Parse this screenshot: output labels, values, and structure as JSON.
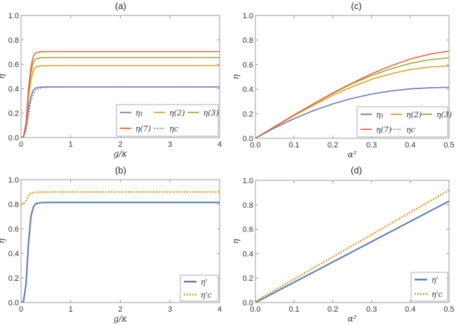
{
  "colors": {
    "blue": "#5e81b5",
    "gold": "#e19c24",
    "green": "#8fb032",
    "red": "#eb6235",
    "purple": "#8778b3"
  },
  "chart_data": [
    {
      "id": "a",
      "panel_label": "(a)",
      "type": "line",
      "xlabel": "g/κ",
      "ylabel": "η",
      "xlim": [
        0,
        4
      ],
      "ylim": [
        0,
        1
      ],
      "xticks": [
        "0",
        "1",
        "2",
        "3",
        "4"
      ],
      "yticks": [
        "0.0",
        "0.2",
        "0.4",
        "0.6",
        "0.8",
        "1.0"
      ],
      "legend_position": "bottom-right",
      "legend_columns": 3,
      "series": [
        {
          "name": "η1",
          "legend": "η₁",
          "color": "blue",
          "dash": "solid",
          "x": [
            0,
            0.05,
            0.1,
            0.15,
            0.2,
            0.25,
            0.3,
            0.4,
            0.6,
            1,
            4
          ],
          "y": [
            0,
            0.01,
            0.08,
            0.24,
            0.34,
            0.39,
            0.408,
            0.414,
            0.415,
            0.415,
            0.415
          ]
        },
        {
          "name": "η(2)",
          "legend": "η(2)",
          "color": "gold",
          "dash": "solid",
          "x": [
            0,
            0.05,
            0.1,
            0.15,
            0.2,
            0.25,
            0.3,
            0.4,
            0.6,
            1,
            4
          ],
          "y": [
            0,
            0.01,
            0.1,
            0.33,
            0.47,
            0.55,
            0.58,
            0.588,
            0.589,
            0.589,
            0.589
          ]
        },
        {
          "name": "η(3)",
          "legend": "η(3)",
          "color": "green",
          "dash": "solid",
          "x": [
            0,
            0.05,
            0.1,
            0.15,
            0.2,
            0.25,
            0.3,
            0.4,
            0.6,
            1,
            4
          ],
          "y": [
            0,
            0.01,
            0.11,
            0.37,
            0.53,
            0.62,
            0.645,
            0.654,
            0.655,
            0.655,
            0.655
          ]
        },
        {
          "name": "η(7)",
          "legend": "η(7)",
          "color": "red",
          "dash": "solid",
          "x": [
            0,
            0.05,
            0.1,
            0.15,
            0.2,
            0.25,
            0.3,
            0.4,
            0.6,
            1,
            4
          ],
          "y": [
            0,
            0.01,
            0.12,
            0.4,
            0.58,
            0.67,
            0.695,
            0.703,
            0.704,
            0.704,
            0.704
          ]
        },
        {
          "name": "ηc",
          "legend": "ηc",
          "color": "purple",
          "dash": "dotted",
          "x": [
            0,
            0.05,
            0.1,
            0.15,
            0.2,
            0.25,
            0.3,
            0.35,
            0.45,
            0.6,
            1,
            4
          ],
          "y": [
            0,
            0.005,
            0.05,
            0.18,
            0.3,
            0.36,
            0.39,
            0.403,
            0.41,
            0.413,
            0.415,
            0.415
          ]
        }
      ]
    },
    {
      "id": "c",
      "panel_label": "(c)",
      "type": "line",
      "xlabel": "α²",
      "ylabel": "η",
      "xlim": [
        0,
        0.5
      ],
      "ylim": [
        0,
        1
      ],
      "xticks": [
        "0.0",
        "0.1",
        "0.2",
        "0.3",
        "0.4",
        "0.5"
      ],
      "yticks": [
        "0.0",
        "0.2",
        "0.4",
        "0.6",
        "0.8",
        "1.0"
      ],
      "legend_position": "bottom-right",
      "legend_columns": 3,
      "series": [
        {
          "name": "η1",
          "legend": "η₁",
          "color": "blue",
          "dash": "solid",
          "x": [
            0,
            0.05,
            0.1,
            0.15,
            0.2,
            0.25,
            0.3,
            0.35,
            0.4,
            0.45,
            0.5
          ],
          "y": [
            0,
            0.085,
            0.16,
            0.225,
            0.28,
            0.325,
            0.36,
            0.385,
            0.402,
            0.411,
            0.415
          ]
        },
        {
          "name": "η(2)",
          "legend": "η(2)",
          "color": "gold",
          "dash": "solid",
          "x": [
            0,
            0.05,
            0.1,
            0.15,
            0.2,
            0.25,
            0.3,
            0.35,
            0.4,
            0.45,
            0.5
          ],
          "y": [
            0,
            0.093,
            0.185,
            0.27,
            0.35,
            0.42,
            0.48,
            0.525,
            0.56,
            0.58,
            0.589
          ]
        },
        {
          "name": "η(3)",
          "legend": "η(3)",
          "color": "green",
          "dash": "solid",
          "x": [
            0,
            0.05,
            0.1,
            0.15,
            0.2,
            0.25,
            0.3,
            0.35,
            0.4,
            0.45,
            0.5
          ],
          "y": [
            0,
            0.095,
            0.19,
            0.28,
            0.365,
            0.445,
            0.51,
            0.565,
            0.61,
            0.64,
            0.655
          ]
        },
        {
          "name": "η(7)",
          "legend": "η(7)",
          "color": "red",
          "dash": "solid",
          "x": [
            0,
            0.05,
            0.1,
            0.15,
            0.2,
            0.25,
            0.3,
            0.35,
            0.4,
            0.45,
            0.5
          ],
          "y": [
            0,
            0.095,
            0.19,
            0.28,
            0.37,
            0.45,
            0.525,
            0.59,
            0.645,
            0.685,
            0.71
          ]
        },
        {
          "name": "ηc",
          "legend": "ηc",
          "color": "purple",
          "dash": "dotted",
          "x": [
            0,
            0.05,
            0.1,
            0.15,
            0.2,
            0.25,
            0.3,
            0.35,
            0.4,
            0.45,
            0.5
          ],
          "y": [
            0,
            0.085,
            0.16,
            0.225,
            0.28,
            0.325,
            0.36,
            0.385,
            0.402,
            0.411,
            0.415
          ]
        }
      ]
    },
    {
      "id": "b",
      "panel_label": "(b)",
      "type": "line",
      "xlabel": "g/κ",
      "ylabel": "η",
      "xlim": [
        0,
        4
      ],
      "ylim": [
        0,
        1
      ],
      "xticks": [
        "0",
        "1",
        "2",
        "3",
        "4"
      ],
      "yticks": [
        "0.0",
        "0.2",
        "0.4",
        "0.6",
        "0.8",
        "1.0"
      ],
      "legend_position": "bottom-right",
      "legend_columns": 1,
      "series": [
        {
          "name": "η'",
          "legend": "η'",
          "color": "blue",
          "dash": "solid",
          "x": [
            0,
            0.05,
            0.1,
            0.15,
            0.2,
            0.25,
            0.3,
            0.4,
            0.6,
            1,
            4
          ],
          "y": [
            0,
            0.01,
            0.15,
            0.48,
            0.7,
            0.78,
            0.805,
            0.813,
            0.815,
            0.815,
            0.815
          ]
        },
        {
          "name": "η'c",
          "legend": "η'c",
          "color": "gold",
          "dash": "dotted",
          "x": [
            0,
            0.05,
            0.1,
            0.15,
            0.2,
            0.3,
            0.5,
            1,
            4
          ],
          "y": [
            0.8,
            0.805,
            0.83,
            0.87,
            0.89,
            0.898,
            0.9,
            0.9,
            0.9
          ]
        }
      ]
    },
    {
      "id": "d",
      "panel_label": "(d)",
      "type": "line",
      "xlabel": "α²",
      "ylabel": "η",
      "xlim": [
        0,
        0.5
      ],
      "ylim": [
        0,
        1
      ],
      "xticks": [
        "0.0",
        "0.1",
        "0.2",
        "0.3",
        "0.4",
        "0.5"
      ],
      "yticks": [
        "0.0",
        "0.2",
        "0.4",
        "0.6",
        "0.8",
        "1.0"
      ],
      "legend_position": "bottom-right",
      "legend_columns": 1,
      "series": [
        {
          "name": "η'",
          "legend": "η'",
          "color": "blue",
          "dash": "solid",
          "x": [
            0,
            0.5
          ],
          "y": [
            0,
            0.83
          ]
        },
        {
          "name": "η'c",
          "legend": "η'c",
          "color": "gold",
          "dash": "dotted",
          "x": [
            0,
            0.5
          ],
          "y": [
            0.01,
            0.92
          ]
        }
      ]
    }
  ]
}
